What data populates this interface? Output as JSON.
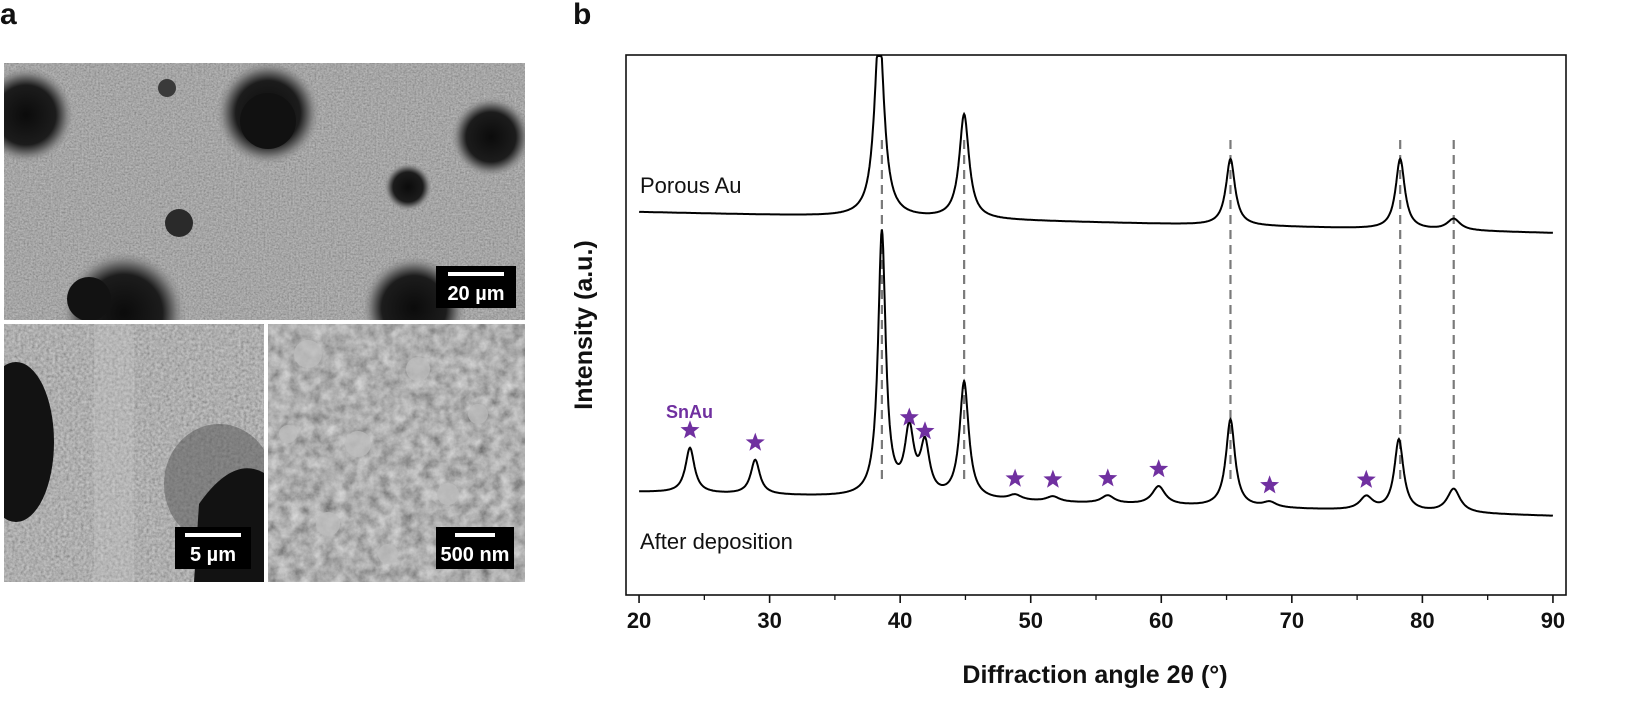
{
  "panels": {
    "a_label": "a",
    "b_label": "b"
  },
  "sem_images": [
    {
      "scale_label": "20 µm"
    },
    {
      "scale_label": "5 µm"
    },
    {
      "scale_label": "500 nm"
    }
  ],
  "chart_data": {
    "type": "line",
    "xlabel": "Diffraction angle 2θ (°)",
    "ylabel": "Intensity (a.u.)",
    "xlim": [
      19,
      91
    ],
    "xticks": [
      20,
      30,
      40,
      50,
      60,
      70,
      80,
      90
    ],
    "yticks_shown": false,
    "series": [
      {
        "name": "Porous Au",
        "peaks": [
          {
            "x": 38.4,
            "rel_intensity": 1.0
          },
          {
            "x": 44.9,
            "rel_intensity": 0.55
          },
          {
            "x": 65.3,
            "rel_intensity": 0.35
          },
          {
            "x": 78.3,
            "rel_intensity": 0.37
          },
          {
            "x": 82.4,
            "rel_intensity": 0.06
          }
        ]
      },
      {
        "name": "After deposition",
        "peaks": [
          {
            "x": 23.9,
            "rel_intensity": 0.17
          },
          {
            "x": 28.9,
            "rel_intensity": 0.13
          },
          {
            "x": 38.6,
            "rel_intensity": 1.0
          },
          {
            "x": 40.7,
            "rel_intensity": 0.24
          },
          {
            "x": 41.9,
            "rel_intensity": 0.19
          },
          {
            "x": 44.9,
            "rel_intensity": 0.44
          },
          {
            "x": 48.8,
            "rel_intensity": 0.02
          },
          {
            "x": 51.7,
            "rel_intensity": 0.02
          },
          {
            "x": 55.9,
            "rel_intensity": 0.03
          },
          {
            "x": 59.8,
            "rel_intensity": 0.07
          },
          {
            "x": 65.3,
            "rel_intensity": 0.33
          },
          {
            "x": 68.3,
            "rel_intensity": 0.02
          },
          {
            "x": 75.7,
            "rel_intensity": 0.05
          },
          {
            "x": 78.2,
            "rel_intensity": 0.27
          },
          {
            "x": 82.4,
            "rel_intensity": 0.09
          }
        ]
      }
    ],
    "reference_lines_x": [
      38.6,
      44.9,
      65.3,
      78.3,
      82.4
    ],
    "snau_marker_x": [
      23.9,
      28.9,
      40.7,
      41.9,
      48.8,
      51.7,
      55.9,
      59.8,
      68.3,
      75.7
    ],
    "snau_label": "SnAu",
    "colors": {
      "line": "#000000",
      "reference": "#7a7a7a",
      "marker": "#7030a0"
    }
  }
}
